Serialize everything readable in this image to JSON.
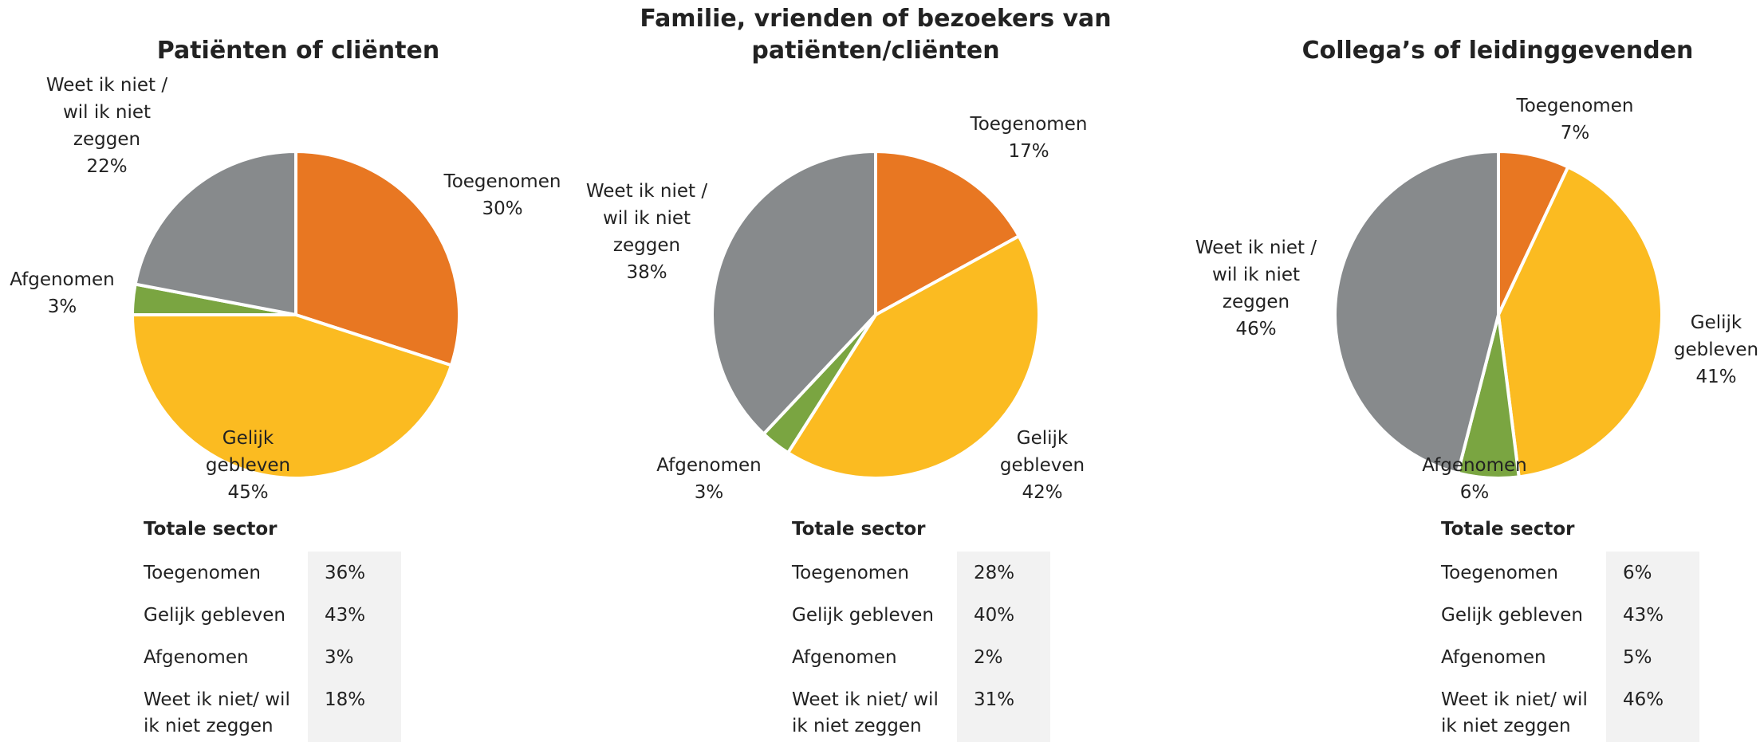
{
  "chart_data": [
    {
      "type": "pie",
      "title": "Patiënten of cliënten",
      "categories": [
        "Toegenomen",
        "Gelijk gebleven",
        "Afgenomen",
        "Weet ik niet / wil ik niet zeggen"
      ],
      "values": [
        30,
        45,
        3,
        22
      ],
      "value_labels": [
        "30%",
        "45%",
        "3%",
        "22%"
      ],
      "colors": [
        "#E87722",
        "#FBBB21",
        "#7AA541",
        "#878A8C"
      ],
      "table": {
        "title": "Totale sector",
        "rows": [
          [
            "Toegenomen",
            "36%"
          ],
          [
            "Gelijk gebleven",
            "43%"
          ],
          [
            "Afgenomen",
            "3%"
          ],
          [
            "Weet ik niet/ wil ik niet zeggen",
            "18%"
          ]
        ]
      }
    },
    {
      "type": "pie",
      "title": "Familie, vrienden of bezoekers van patiënten/cliënten",
      "categories": [
        "Toegenomen",
        "Gelijk gebleven",
        "Afgenomen",
        "Weet ik niet / wil ik niet zeggen"
      ],
      "values": [
        17,
        42,
        3,
        38
      ],
      "value_labels": [
        "17%",
        "42%",
        "3%",
        "38%"
      ],
      "colors": [
        "#E87722",
        "#FBBB21",
        "#7AA541",
        "#878A8C"
      ],
      "table": {
        "title": "Totale sector",
        "rows": [
          [
            "Toegenomen",
            "28%"
          ],
          [
            "Gelijk gebleven",
            "40%"
          ],
          [
            "Afgenomen",
            "2%"
          ],
          [
            "Weet ik niet/ wil ik niet zeggen",
            "31%"
          ]
        ]
      }
    },
    {
      "type": "pie",
      "title": "Collega’s of leidinggevenden",
      "categories": [
        "Toegenomen",
        "Gelijk gebleven",
        "Afgenomen",
        "Weet ik niet / wil ik niet zeggen"
      ],
      "values": [
        7,
        41,
        6,
        46
      ],
      "value_labels": [
        "7%",
        "41%",
        "6%",
        "46%"
      ],
      "colors": [
        "#E87722",
        "#FBBB21",
        "#7AA541",
        "#878A8C"
      ],
      "table": {
        "title": "Totale sector",
        "rows": [
          [
            "Toegenomen",
            "6%"
          ],
          [
            "Gelijk gebleven",
            "43%"
          ],
          [
            "Afgenomen",
            "5%"
          ],
          [
            "Weet ik niet/ wil ik niet zeggen",
            "46%"
          ]
        ]
      }
    }
  ]
}
